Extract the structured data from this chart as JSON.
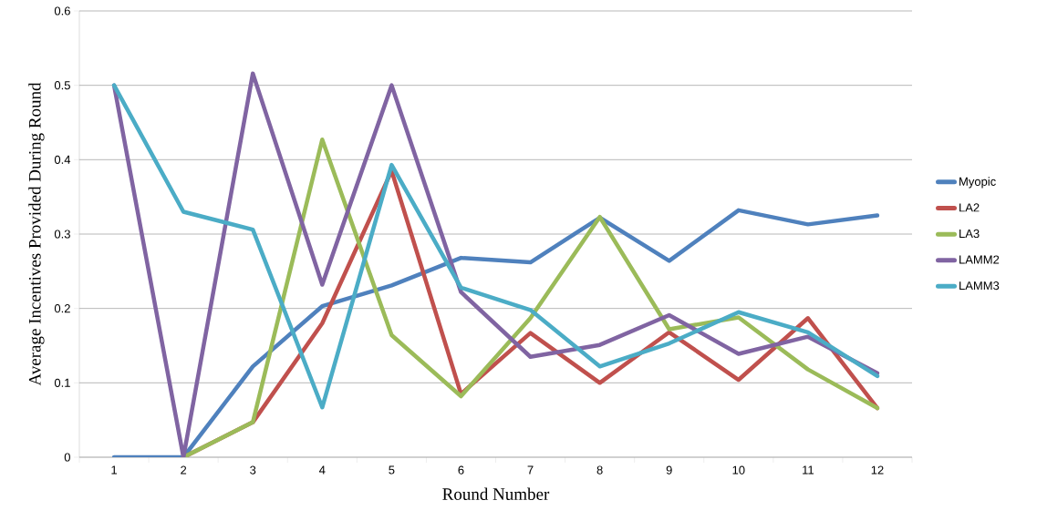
{
  "chart_data": {
    "type": "line",
    "xlabel": "Round Number",
    "ylabel": "Average Incentives Provided During Round",
    "categories": [
      "1",
      "2",
      "3",
      "4",
      "5",
      "6",
      "7",
      "8",
      "9",
      "10",
      "11",
      "12"
    ],
    "series": [
      {
        "name": "Myopic",
        "color": "#4f81bd",
        "values": [
          0,
          0,
          0.122,
          0.203,
          0.231,
          0.268,
          0.262,
          0.322,
          0.264,
          0.332,
          0.313,
          0.325
        ]
      },
      {
        "name": "LA2",
        "color": "#c0504d",
        "values": [
          null,
          0,
          0.047,
          0.18,
          0.385,
          0.085,
          0.167,
          0.1,
          0.168,
          0.104,
          0.187,
          0.066
        ]
      },
      {
        "name": "LA3",
        "color": "#9bbb59",
        "values": [
          null,
          0,
          0.047,
          0.427,
          0.164,
          0.082,
          0.187,
          0.323,
          0.172,
          0.188,
          0.118,
          0.066
        ]
      },
      {
        "name": "LAMM2",
        "color": "#8064a2",
        "values": [
          0.5,
          0,
          0.516,
          0.232,
          0.5,
          0.222,
          0.135,
          0.151,
          0.191,
          0.139,
          0.162,
          0.113
        ]
      },
      {
        "name": "LAMM3",
        "color": "#4bacc6",
        "values": [
          0.5,
          0.33,
          0.306,
          0.067,
          0.393,
          0.228,
          0.198,
          0.122,
          0.153,
          0.195,
          0.168,
          0.109
        ]
      }
    ],
    "ylim": [
      0,
      0.6
    ],
    "yticks": [
      0,
      0.1,
      0.2,
      0.3,
      0.4,
      0.5,
      0.6
    ],
    "grid": "y",
    "legend": "right",
    "marker": "none",
    "line_style": "solid"
  }
}
